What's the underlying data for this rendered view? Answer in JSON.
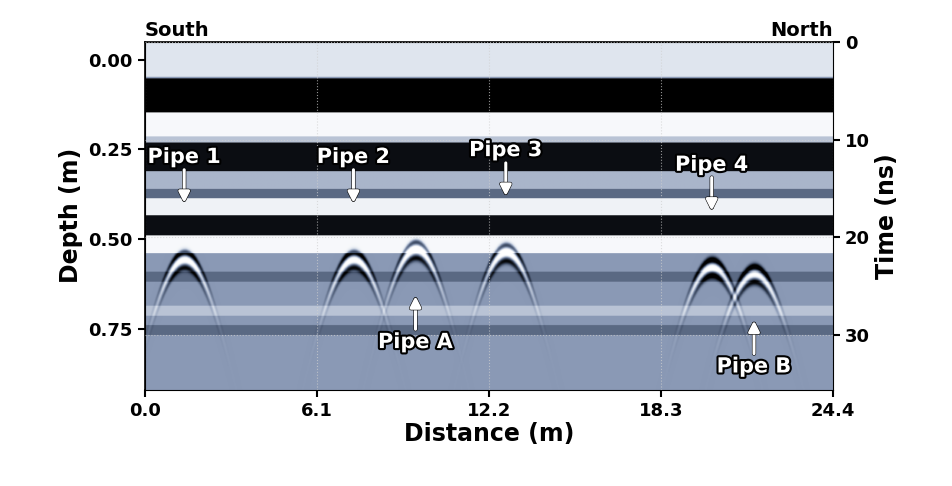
{
  "chart_data": {
    "type": "radargram",
    "left_title": "South",
    "right_title": "North",
    "xlabel": "Distance (m)",
    "ylabel": "Depth (m)",
    "y2label": "Time (ns)",
    "xlim": [
      0.0,
      24.4
    ],
    "xticks": [
      0.0,
      6.1,
      12.2,
      18.3,
      24.4
    ],
    "ylim": [
      0.92,
      -0.05
    ],
    "yticks": [
      {
        "value": 0,
        "label": "0.00"
      },
      {
        "value": 0.25,
        "label": "0.25"
      },
      {
        "value": 0.5,
        "label": "0.50"
      },
      {
        "value": 0.75,
        "label": "0.75"
      }
    ],
    "y2lim": [
      35.6,
      0
    ],
    "y2ticks": [
      0,
      10,
      20,
      30
    ],
    "grid": true,
    "bands": [
      {
        "top": 0,
        "bottom": 3.5,
        "amplitude": 0.6
      },
      {
        "top": 3.7,
        "bottom": 7.2,
        "amplitude": -1
      },
      {
        "top": 7.2,
        "bottom": 9.6,
        "amplitude": 0.9
      },
      {
        "top": 9.6,
        "bottom": 10.3,
        "amplitude": 0.3
      },
      {
        "top": 10.3,
        "bottom": 13.2,
        "amplitude": -0.9
      },
      {
        "top": 13.2,
        "bottom": 15.0,
        "amplitude": 0.2
      },
      {
        "top": 15.0,
        "bottom": 16.0,
        "amplitude": -0.3
      },
      {
        "top": 16.0,
        "bottom": 17.7,
        "amplitude": 0.8
      },
      {
        "top": 17.7,
        "bottom": 19.8,
        "amplitude": -0.9
      },
      {
        "top": 19.8,
        "bottom": 21.6,
        "amplitude": 0.9
      },
      {
        "top": 23.5,
        "bottom": 24.5,
        "amplitude": -0.3
      },
      {
        "top": 27.0,
        "bottom": 28.0,
        "amplitude": 0.3
      },
      {
        "top": 29.0,
        "bottom": 30.0,
        "amplitude": -0.3
      }
    ],
    "reflectors": [
      {
        "label": "Pipe 1",
        "distance": 1.4,
        "time": 21.5,
        "arrow": "down"
      },
      {
        "label": "Pipe 2",
        "distance": 7.4,
        "time": 21.5,
        "arrow": "down"
      },
      {
        "label": "Pipe 3",
        "distance": 12.8,
        "time": 20.8,
        "arrow": "down"
      },
      {
        "label": "Pipe 4",
        "distance": 20.1,
        "time": 22.3,
        "arrow": "down"
      },
      {
        "label": "Pipe A",
        "distance": 9.6,
        "time": 20.5,
        "arrow": "up"
      },
      {
        "label": "Pipe B",
        "distance": 21.6,
        "time": 23.0,
        "arrow": "up"
      }
    ]
  }
}
